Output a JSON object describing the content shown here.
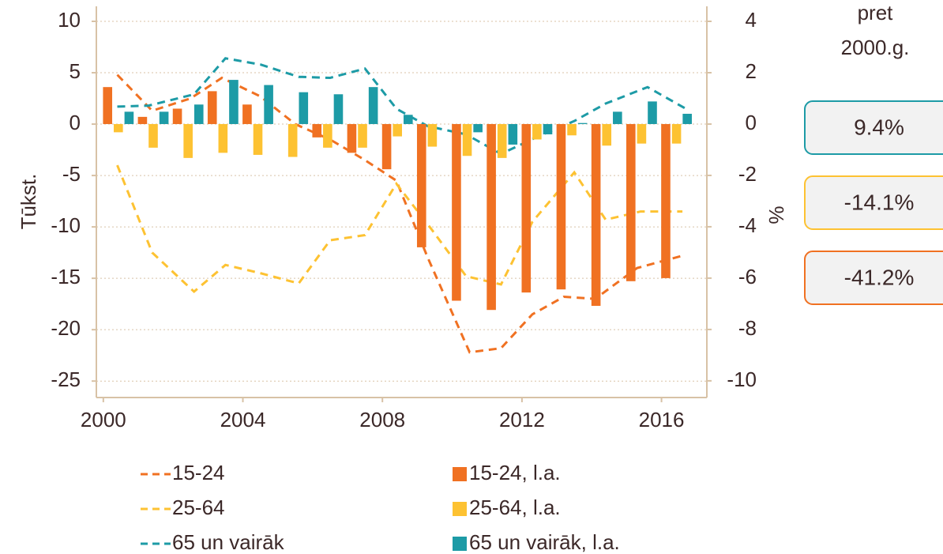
{
  "chart_data": {
    "type": "combo",
    "ylabel": "Tūkst.",
    "y2label": "%",
    "xlim": [
      1999.8,
      2017.3
    ],
    "xticks": [
      2000,
      2004,
      2008,
      2012,
      2016
    ],
    "ylim": [
      -26.6,
      11.46
    ],
    "yticks": [
      10,
      5,
      0,
      -5,
      -10,
      -15,
      -20,
      -25
    ],
    "y2lim": [
      -10.65,
      4.585
    ],
    "y2ticks": [
      4,
      2,
      0,
      -2,
      -4,
      -6,
      -8,
      -10
    ],
    "grid": true,
    "series": [
      {
        "name": "15-24",
        "type": "line",
        "color": "#f07122",
        "x": [
          2000.4,
          2001.4,
          2002.5,
          2003.4,
          2004.5,
          2005.5,
          2006.5,
          2007.5,
          2008.4,
          2009.3,
          2010.5,
          2011.4,
          2012.3,
          2013.2,
          2014.1,
          2015.3,
          2016.6
        ],
        "values": [
          4.8,
          1.3,
          2.5,
          4.5,
          2.7,
          0,
          -1.5,
          -3.5,
          -5.5,
          -13,
          -22.2,
          -21.8,
          -18.5,
          -16.8,
          -17,
          -14,
          -12.8
        ]
      },
      {
        "name": "25-64",
        "type": "line",
        "color": "#fdc232",
        "x": [
          2000.4,
          2001.4,
          2002.6,
          2003.5,
          2004.5,
          2005.6,
          2006.5,
          2007.5,
          2008.4,
          2009.4,
          2010.4,
          2011.4,
          2012.3,
          2013.5,
          2014.4,
          2015.4,
          2016.6
        ],
        "values": [
          -4,
          -12.5,
          -16.3,
          -13.7,
          -14.5,
          -15.5,
          -11.3,
          -10.8,
          -5.8,
          -10.2,
          -14.8,
          -15.6,
          -9.5,
          -4.7,
          -9.3,
          -8.5,
          -8.5
        ]
      },
      {
        "name": "65 un vairāk",
        "type": "line",
        "color": "#1d9ba6",
        "x": [
          2000.4,
          2001.3,
          2002.6,
          2003.5,
          2004.5,
          2005.6,
          2006.5,
          2007.5,
          2008.4,
          2009.3,
          2010.4,
          2011.4,
          2012.4,
          2013.5,
          2014.4,
          2015.6,
          2016.8
        ],
        "values": [
          1.7,
          1.8,
          2.9,
          6.4,
          5.8,
          4.6,
          4.5,
          5.4,
          1.5,
          -0.2,
          -1,
          -2.9,
          -1.3,
          0.3,
          2,
          3.6,
          1.3
        ]
      },
      {
        "name": "15-24, l.a.",
        "type": "bar",
        "axis": "y2",
        "color": "#f07122",
        "x": [
          2000,
          2001,
          2002,
          2003,
          2004,
          2005,
          2006,
          2007,
          2008,
          2009,
          2010,
          2011,
          2012,
          2013,
          2014,
          2015,
          2016
        ],
        "values": [
          1.44,
          0.28,
          0.6,
          1.28,
          0.76,
          0,
          -0.52,
          -1.12,
          -1.76,
          -4.8,
          -6.88,
          -7.24,
          -6.56,
          -6.44,
          -7.08,
          -6.12,
          -6
        ]
      },
      {
        "name": "25-64, l.a.",
        "type": "bar",
        "axis": "y2",
        "color": "#fdc232",
        "x": [
          2000,
          2001,
          2002,
          2003,
          2004,
          2005,
          2006,
          2007,
          2008,
          2009,
          2010,
          2011,
          2012,
          2013,
          2014,
          2015,
          2016
        ],
        "values": [
          -0.32,
          -0.92,
          -1.32,
          -1.12,
          -1.2,
          -1.28,
          -0.92,
          -0.92,
          -0.48,
          -0.88,
          -1.24,
          -1.32,
          -0.6,
          -0.44,
          -0.84,
          -0.76,
          -0.76
        ]
      },
      {
        "name": "65 un vairāk, l.a.",
        "type": "bar",
        "axis": "y2",
        "color": "#1d9ba6",
        "x": [
          2000,
          2001,
          2002,
          2003,
          2004,
          2005,
          2006,
          2007,
          2008,
          2009,
          2010,
          2011,
          2012,
          2013,
          2014,
          2015,
          2016
        ],
        "values": [
          0.48,
          0.48,
          0.76,
          1.72,
          1.52,
          1.24,
          1.16,
          1.44,
          0.36,
          0,
          -0.32,
          -0.8,
          -0.4,
          0.04,
          0.48,
          0.88,
          0.4
        ]
      }
    ],
    "side_note": [
      "pret",
      "2000.g."
    ],
    "boxes": [
      {
        "label": "9.4%",
        "color": "#1d9ba6"
      },
      {
        "label": "-14.1%",
        "color": "#fdc232"
      },
      {
        "label": "-41.2%",
        "color": "#f07122"
      }
    ]
  }
}
